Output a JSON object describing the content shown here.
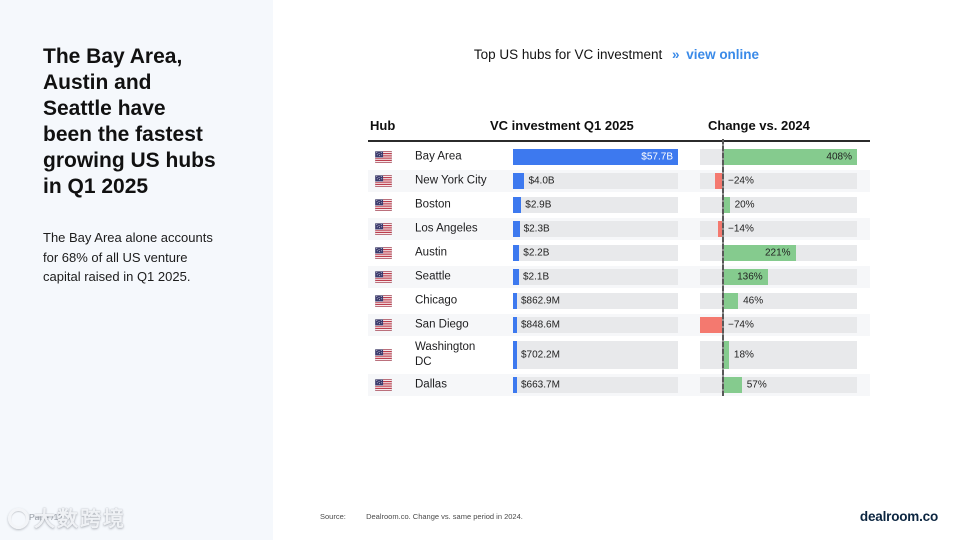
{
  "sidebar": {
    "title_lines": [
      "The Bay Area,",
      "Austin and",
      "Seattle have",
      "been the fastest",
      "growing US hubs",
      "in Q1 2025"
    ],
    "body_lines": [
      "The Bay Area alone accounts",
      "for 68% of all US venture",
      "capital raised in Q1 2025."
    ]
  },
  "header": {
    "title": "Top US hubs for VC investment",
    "chevrons": "»",
    "link_label": "view online"
  },
  "table": {
    "columns": [
      "Hub",
      "VC investment Q1 2025",
      "Change vs. 2024"
    ],
    "display_names": [
      "Bay Area",
      "New York City",
      "Boston",
      "Los Angeles",
      "Austin",
      "Seattle",
      "Chicago",
      "San Diego",
      "Washington\nDC",
      "Dallas"
    ],
    "flag": "us-flag"
  },
  "chart_data": {
    "type": "bar",
    "title": "Top US hubs for VC investment",
    "categories": [
      "Bay Area",
      "New York City",
      "Boston",
      "Los Angeles",
      "Austin",
      "Seattle",
      "Chicago",
      "San Diego",
      "Washington DC",
      "Dallas"
    ],
    "series": [
      {
        "name": "VC investment Q1 2025 ($B)",
        "values": [
          57.7,
          4.0,
          2.9,
          2.3,
          2.2,
          2.1,
          0.8629,
          0.8486,
          0.7022,
          0.6637
        ],
        "labels": [
          "$57.7B",
          "$4.0B",
          "$2.9B",
          "$2.3B",
          "$2.2B",
          "$2.1B",
          "$862.9M",
          "$848.6M",
          "$702.2M",
          "$663.7M"
        ]
      },
      {
        "name": "Change vs. 2024 (%)",
        "values": [
          408,
          -24,
          20,
          -14,
          221,
          136,
          46,
          -74,
          18,
          57
        ],
        "labels": [
          "408%",
          "−24%",
          "20%",
          "−14%",
          "221%",
          "136%",
          "46%",
          "−74%",
          "18%",
          "57%"
        ]
      }
    ],
    "value_axis_max": 57.7,
    "change_axis_range": [
      -70,
      408
    ],
    "legend_position": "none",
    "grid": false,
    "colors": {
      "investment_bar": "#3d79ef",
      "change_positive": "#85cb8e",
      "change_negative": "#f4796f",
      "track": "#e8e9eb",
      "accent_link": "#3a8ae8"
    }
  },
  "footer": {
    "source_label": "Source:",
    "source_text": "Dealroom.co. Change vs. same period in 2024.",
    "brand": "dealroom.co",
    "page_label": "Page /13",
    "watermark": "大数跨境"
  }
}
